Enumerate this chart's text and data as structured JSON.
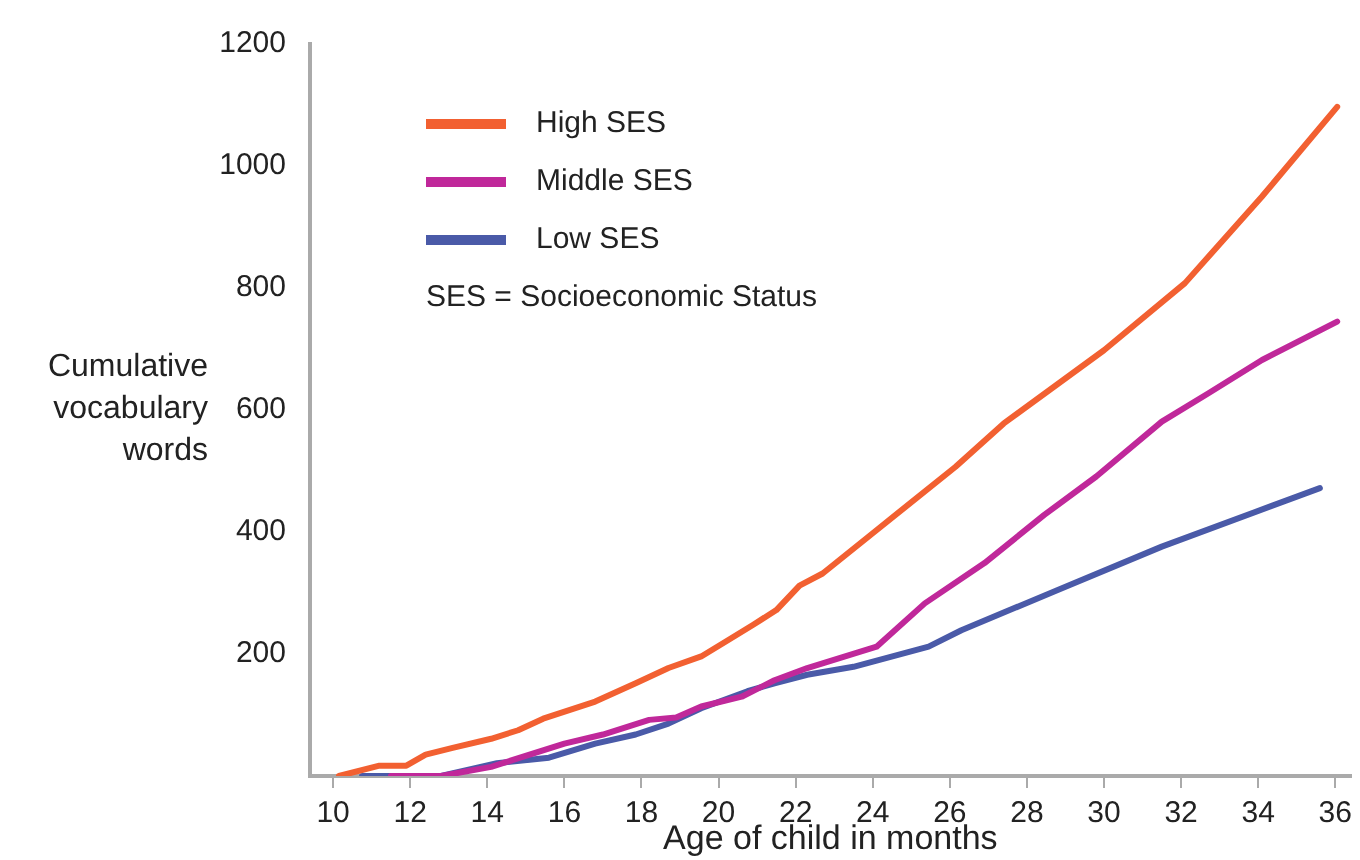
{
  "chart_data": {
    "type": "line",
    "xlabel": "Age of child in months",
    "ylabel": "Cumulative vocabulary words",
    "xlim": [
      9.4,
      36.4
    ],
    "xticks": [
      10,
      12,
      14,
      16,
      18,
      20,
      22,
      24,
      26,
      28,
      30,
      32,
      34,
      36
    ],
    "ylim": [
      0,
      1200
    ],
    "yticks": [
      200,
      400,
      600,
      800,
      1000,
      1200
    ],
    "grid": false,
    "legend": "top left",
    "marker": "none",
    "line_style": "solid",
    "annotations": [
      "SES = Socioeconomic Status"
    ],
    "series": [
      {
        "name": "High SES",
        "color": "#f26031",
        "x": [
          10.15,
          11.2,
          11.9,
          12.4,
          13.1,
          14.1,
          14.8,
          15.45,
          16.8,
          17.85,
          18.7,
          19.55,
          20.2,
          20.9,
          21.5,
          22.1,
          22.7,
          24.0,
          26.15,
          27.4,
          30.0,
          32.1,
          34.1,
          36.05
        ],
        "values": [
          0,
          17,
          17,
          35,
          46,
          61,
          75,
          94,
          122,
          152,
          177,
          196,
          221,
          248,
          272,
          312,
          332,
          398,
          507,
          578,
          698,
          808,
          950,
          1097
        ]
      },
      {
        "name": "Middle SES",
        "color": "#c0289a",
        "x": [
          11.5,
          12.8,
          14.1,
          16.0,
          17.0,
          18.2,
          18.9,
          19.55,
          20.6,
          21.45,
          22.3,
          24.1,
          25.35,
          26.9,
          28.45,
          29.8,
          31.5,
          32.7,
          34.1,
          36.05
        ],
        "values": [
          0,
          0,
          15,
          53,
          68,
          92,
          96,
          114,
          130,
          157,
          177,
          212,
          283,
          349,
          428,
          491,
          581,
          627,
          682,
          745
        ]
      },
      {
        "name": "Low SES",
        "color": "#4a5aa8",
        "x": [
          10.75,
          12.8,
          14.25,
          15.6,
          16.8,
          17.85,
          18.7,
          19.55,
          20.75,
          21.45,
          22.3,
          23.5,
          25.45,
          26.3,
          28.8,
          31.5,
          35.6
        ],
        "values": [
          0,
          0,
          21,
          30,
          53,
          68,
          86,
          111,
          139,
          152,
          166,
          179,
          212,
          239,
          305,
          376,
          472
        ]
      }
    ]
  }
}
